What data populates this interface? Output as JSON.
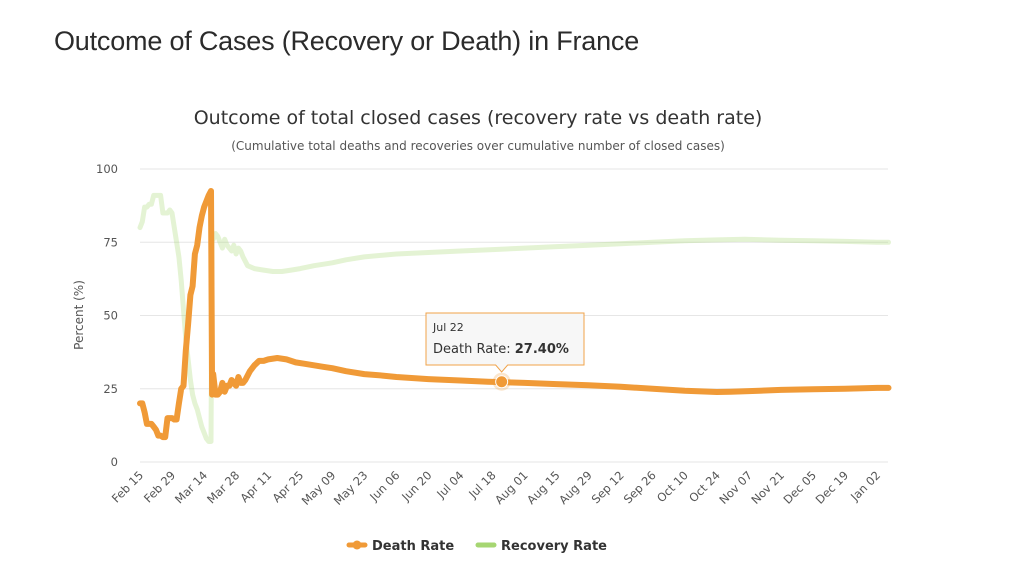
{
  "page": {
    "title": "Outcome of Cases (Recovery or Death) in France"
  },
  "chart_data": {
    "type": "line",
    "title": "Outcome of total closed cases (recovery rate vs death rate)",
    "subtitle": "(Cumulative total deaths and recoveries over cumulative number of closed cases)",
    "xlabel": "",
    "ylabel": "Percent (%)",
    "ylim": [
      0,
      100
    ],
    "yticks": [
      0,
      25,
      50,
      75,
      100
    ],
    "grid": true,
    "legend_position": "bottom-center",
    "x_start": "Feb 15",
    "x_unit": "days since Feb 15",
    "xlim_days": [
      0,
      327
    ],
    "xtick_labels": [
      "Feb 15",
      "Feb 29",
      "Mar 14",
      "Mar 28",
      "Apr 11",
      "Apr 25",
      "May 09",
      "May 23",
      "Jun 06",
      "Jun 20",
      "Jul 04",
      "Jul 18",
      "Aug 01",
      "Aug 15",
      "Aug 29",
      "Sep 12",
      "Sep 26",
      "Oct 10",
      "Oct 24",
      "Nov 07",
      "Nov 21",
      "Dec 05",
      "Dec 19",
      "Jan 02"
    ],
    "xtick_days": [
      0,
      14,
      28,
      42,
      56,
      70,
      84,
      98,
      112,
      126,
      140,
      154,
      168,
      182,
      196,
      210,
      224,
      238,
      252,
      266,
      280,
      294,
      308,
      322
    ],
    "series": [
      {
        "name": "Death Rate",
        "color": "#f09a37",
        "points": [
          [
            0,
            20
          ],
          [
            1,
            20
          ],
          [
            2,
            17
          ],
          [
            3,
            13
          ],
          [
            4,
            13
          ],
          [
            5,
            13
          ],
          [
            6,
            12
          ],
          [
            7,
            11
          ],
          [
            8,
            9
          ],
          [
            9,
            9
          ],
          [
            10,
            8.5
          ],
          [
            11,
            8.5
          ],
          [
            12,
            15
          ],
          [
            13,
            15
          ],
          [
            14,
            15
          ],
          [
            15,
            14.5
          ],
          [
            16,
            14.5
          ],
          [
            17,
            20
          ],
          [
            18,
            25
          ],
          [
            19,
            26
          ],
          [
            20,
            38
          ],
          [
            21,
            47
          ],
          [
            22,
            57
          ],
          [
            23,
            60
          ],
          [
            24,
            71
          ],
          [
            25,
            74
          ],
          [
            26,
            80
          ],
          [
            27,
            84
          ],
          [
            28,
            87
          ],
          [
            29,
            89
          ],
          [
            30,
            91
          ],
          [
            31,
            92.5
          ],
          [
            31.5,
            23
          ],
          [
            32,
            30
          ],
          [
            33,
            23
          ],
          [
            34,
            23
          ],
          [
            35,
            24
          ],
          [
            36,
            27
          ],
          [
            37,
            24
          ],
          [
            38,
            26
          ],
          [
            39,
            26
          ],
          [
            40,
            28
          ],
          [
            41,
            27
          ],
          [
            42,
            26
          ],
          [
            43,
            29
          ],
          [
            44,
            27
          ],
          [
            45,
            27
          ],
          [
            46,
            28
          ],
          [
            48,
            31
          ],
          [
            50,
            33
          ],
          [
            52,
            34.5
          ],
          [
            54,
            34.5
          ],
          [
            56,
            35
          ],
          [
            60,
            35.5
          ],
          [
            64,
            35
          ],
          [
            68,
            34
          ],
          [
            72,
            33.5
          ],
          [
            76,
            33
          ],
          [
            80,
            32.5
          ],
          [
            84,
            32
          ],
          [
            90,
            31
          ],
          [
            98,
            30
          ],
          [
            106,
            29.5
          ],
          [
            112,
            29
          ],
          [
            126,
            28.3
          ],
          [
            140,
            27.8
          ],
          [
            152,
            27.4
          ],
          [
            160,
            27.2
          ],
          [
            168,
            27
          ],
          [
            182,
            26.6
          ],
          [
            196,
            26.2
          ],
          [
            210,
            25.7
          ],
          [
            224,
            25
          ],
          [
            238,
            24.3
          ],
          [
            252,
            23.9
          ],
          [
            258,
            24
          ],
          [
            266,
            24.2
          ],
          [
            280,
            24.6
          ],
          [
            294,
            24.8
          ],
          [
            308,
            25
          ],
          [
            322,
            25.3
          ],
          [
            327,
            25.3
          ]
        ]
      },
      {
        "name": "Recovery Rate",
        "color": "#a6d672",
        "points": [
          [
            0,
            80
          ],
          [
            1,
            82
          ],
          [
            2,
            87
          ],
          [
            3,
            87
          ],
          [
            4,
            88
          ],
          [
            5,
            88
          ],
          [
            6,
            91
          ],
          [
            7,
            91
          ],
          [
            8,
            91
          ],
          [
            9,
            91
          ],
          [
            10,
            85
          ],
          [
            11,
            85
          ],
          [
            12,
            85
          ],
          [
            13,
            86
          ],
          [
            14,
            85
          ],
          [
            15,
            80
          ],
          [
            16,
            75
          ],
          [
            17,
            70
          ],
          [
            18,
            62
          ],
          [
            19,
            52
          ],
          [
            20,
            42
          ],
          [
            21,
            35
          ],
          [
            22,
            28
          ],
          [
            23,
            23
          ],
          [
            24,
            20
          ],
          [
            25,
            18
          ],
          [
            26,
            15
          ],
          [
            27,
            12
          ],
          [
            28,
            10
          ],
          [
            29,
            8
          ],
          [
            30,
            7
          ],
          [
            31,
            7
          ],
          [
            31.5,
            77
          ],
          [
            32,
            76
          ],
          [
            33,
            78
          ],
          [
            34,
            77
          ],
          [
            35,
            75
          ],
          [
            36,
            73
          ],
          [
            37,
            76
          ],
          [
            38,
            74
          ],
          [
            39,
            73
          ],
          [
            40,
            72
          ],
          [
            41,
            74
          ],
          [
            42,
            71
          ],
          [
            43,
            73
          ],
          [
            44,
            72
          ],
          [
            45,
            70
          ],
          [
            47,
            67
          ],
          [
            50,
            66
          ],
          [
            54,
            65.5
          ],
          [
            58,
            65
          ],
          [
            62,
            65
          ],
          [
            66,
            65.5
          ],
          [
            70,
            66
          ],
          [
            76,
            67
          ],
          [
            84,
            68
          ],
          [
            90,
            69
          ],
          [
            98,
            70
          ],
          [
            112,
            71
          ],
          [
            126,
            71.5
          ],
          [
            140,
            72
          ],
          [
            154,
            72.5
          ],
          [
            168,
            73
          ],
          [
            182,
            73.5
          ],
          [
            196,
            74
          ],
          [
            210,
            74.5
          ],
          [
            224,
            75
          ],
          [
            238,
            75.5
          ],
          [
            252,
            75.8
          ],
          [
            264,
            76
          ],
          [
            280,
            75.7
          ],
          [
            294,
            75.5
          ],
          [
            308,
            75.3
          ],
          [
            322,
            75
          ],
          [
            327,
            75
          ]
        ]
      }
    ],
    "tooltip": {
      "date": "Jul 22",
      "day": 158,
      "series": "Death Rate",
      "label": "Death Rate: ",
      "value": 27.4,
      "value_text": "27.40%"
    }
  }
}
